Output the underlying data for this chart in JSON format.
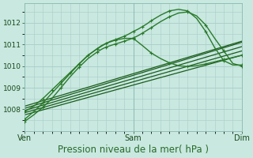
{
  "background_color": "#c8e8e0",
  "grid_color": "#aaccc8",
  "line_color_dark": "#1a5c1a",
  "line_color_marker": "#2a7a2a",
  "xlim": [
    0,
    48
  ],
  "ylim": [
    1007.3,
    1012.9
  ],
  "yticks": [
    1008,
    1009,
    1010,
    1011,
    1012
  ],
  "xtick_positions": [
    0,
    24,
    48
  ],
  "xtick_labels": [
    "Ven",
    "Sam",
    "Dim"
  ],
  "xlabel": "Pression niveau de la mer( hPa )",
  "xlabel_fontsize": 8.5,
  "ytick_fontsize": 6.5,
  "xtick_fontsize": 7,
  "straight_lines": [
    {
      "x0": 0,
      "y0": 1007.75,
      "x1": 48,
      "y1": 1010.5
    },
    {
      "x0": 0,
      "y0": 1007.85,
      "x1": 48,
      "y1": 1010.7
    },
    {
      "x0": 0,
      "y0": 1007.95,
      "x1": 48,
      "y1": 1010.9
    },
    {
      "x0": 0,
      "y0": 1008.05,
      "x1": 48,
      "y1": 1011.1
    },
    {
      "x0": 0,
      "y0": 1008.15,
      "x1": 48,
      "y1": 1011.15
    }
  ],
  "peaked_series": [
    {
      "x": [
        0,
        2,
        4,
        6,
        8,
        10,
        12,
        14,
        16,
        17,
        18,
        19,
        20,
        21,
        22,
        23,
        24,
        25,
        26,
        27,
        28,
        30,
        32,
        34,
        36,
        38,
        40,
        42,
        44,
        46,
        48
      ],
      "y": [
        1007.55,
        1007.9,
        1008.3,
        1008.75,
        1009.2,
        1009.65,
        1010.1,
        1010.5,
        1010.8,
        1010.95,
        1011.05,
        1011.15,
        1011.22,
        1011.3,
        1011.38,
        1011.48,
        1011.6,
        1011.7,
        1011.82,
        1011.95,
        1012.1,
        1012.35,
        1012.55,
        1012.62,
        1012.55,
        1012.2,
        1011.6,
        1010.85,
        1010.25,
        1010.05,
        1010.05
      ],
      "markers": true
    },
    {
      "x": [
        0,
        2,
        4,
        6,
        8,
        10,
        12,
        14,
        16,
        17,
        18,
        19,
        20,
        21,
        22,
        23,
        24,
        25,
        26,
        27,
        28,
        30,
        32,
        34,
        36,
        38,
        40,
        42,
        44,
        46,
        48
      ],
      "y": [
        1007.45,
        1007.75,
        1008.1,
        1008.5,
        1009.0,
        1009.5,
        1009.95,
        1010.35,
        1010.65,
        1010.78,
        1010.88,
        1010.95,
        1011.02,
        1011.08,
        1011.15,
        1011.22,
        1011.3,
        1011.4,
        1011.52,
        1011.65,
        1011.78,
        1012.05,
        1012.28,
        1012.45,
        1012.5,
        1012.32,
        1011.9,
        1011.28,
        1010.7,
        1010.12,
        1010.0
      ],
      "markers": true
    },
    {
      "x": [
        0,
        2,
        4,
        5,
        6,
        7,
        8,
        9,
        10,
        11,
        12,
        13,
        14,
        15,
        16,
        18,
        20,
        22,
        24,
        26,
        28,
        30,
        32,
        34,
        36,
        38,
        40,
        42,
        44,
        46,
        48
      ],
      "y": [
        1007.9,
        1008.15,
        1008.5,
        1008.7,
        1008.9,
        1009.1,
        1009.3,
        1009.5,
        1009.7,
        1009.9,
        1010.1,
        1010.3,
        1010.5,
        1010.65,
        1010.8,
        1011.05,
        1011.2,
        1011.28,
        1011.28,
        1010.95,
        1010.6,
        1010.35,
        1010.15,
        1010.02,
        1009.98,
        1010.02,
        1010.1,
        1010.2,
        1010.3,
        1010.4,
        1010.5
      ],
      "markers": true
    }
  ]
}
